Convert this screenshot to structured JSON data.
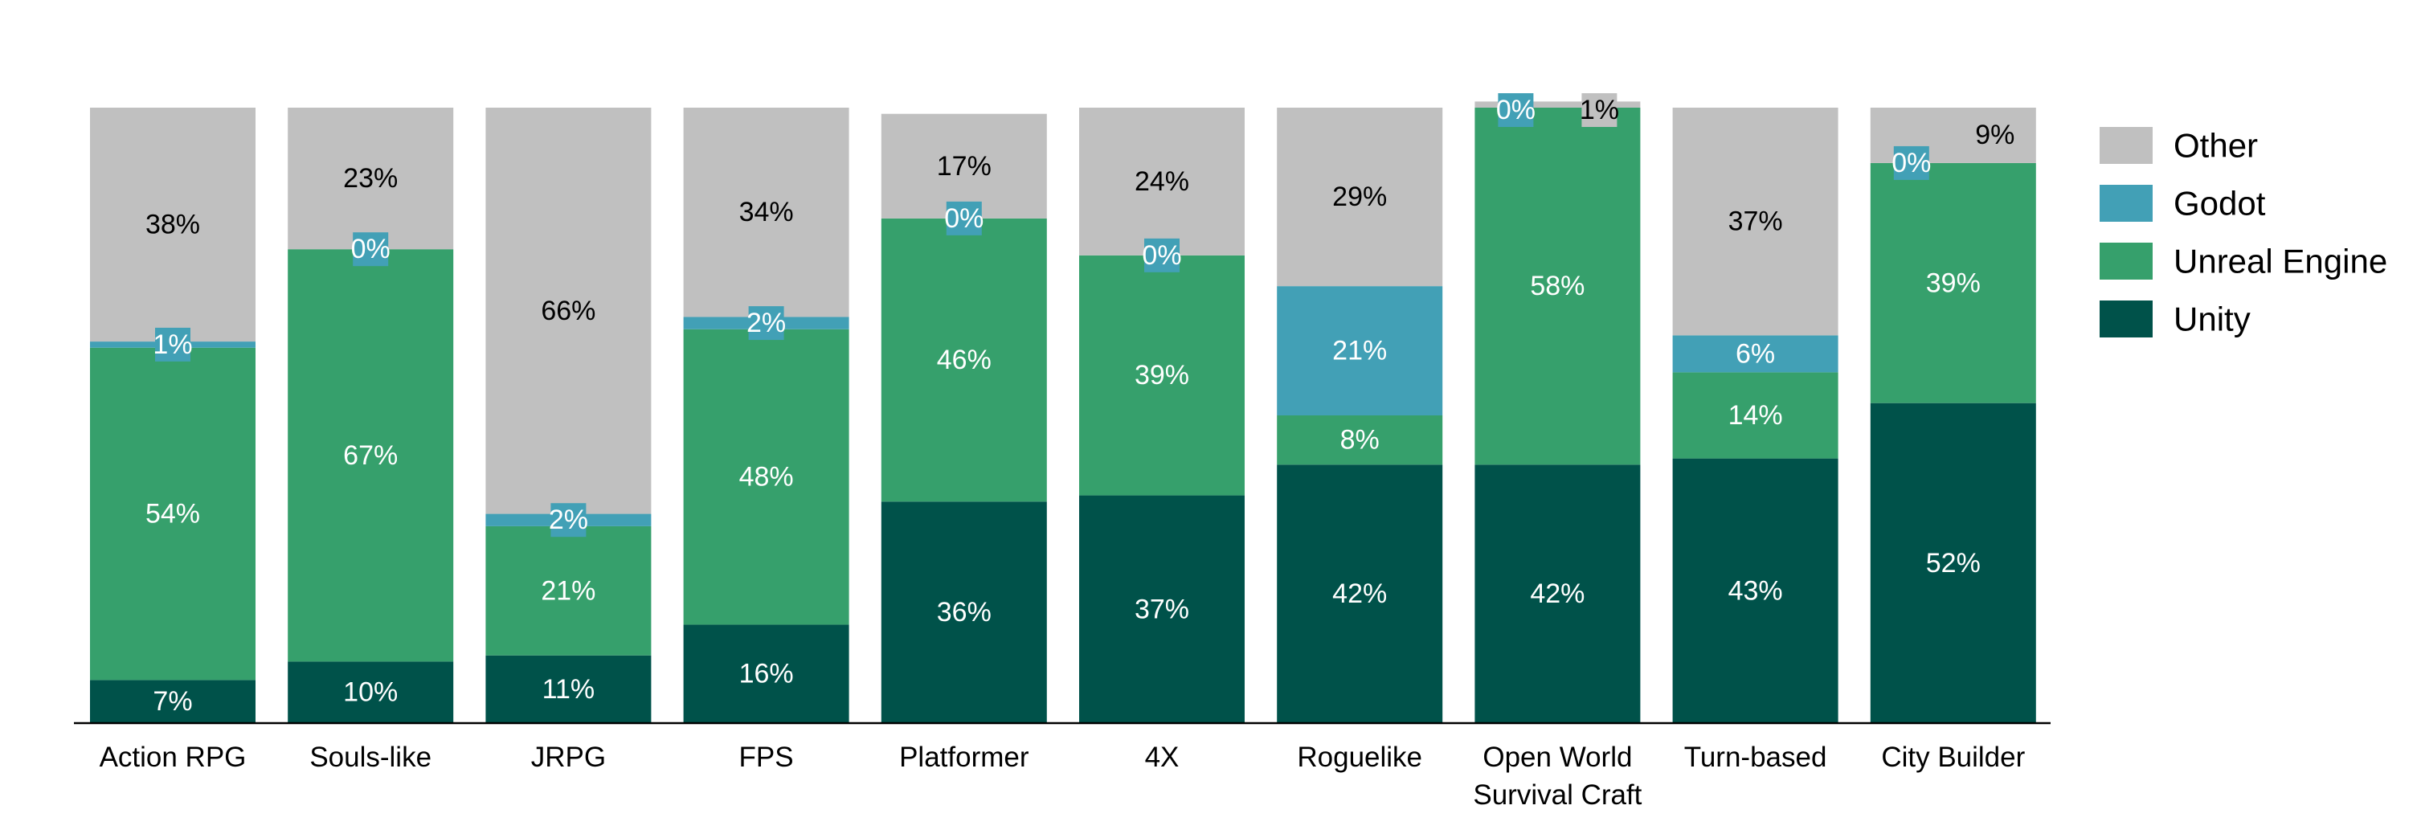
{
  "chart_data": {
    "type": "bar",
    "stacked": true,
    "normalized": true,
    "categories": [
      "Action RPG",
      "Souls-like",
      "JRPG",
      "FPS",
      "Platformer",
      "4X",
      "Roguelike",
      "Open World\nSurvival Craft",
      "Turn-based",
      "City Builder"
    ],
    "series": [
      {
        "name": "Unity",
        "color": "#00524a",
        "label_color": "#ffffff",
        "values": [
          7,
          10,
          11,
          16,
          36,
          37,
          42,
          42,
          43,
          52
        ]
      },
      {
        "name": "Unreal Engine",
        "color": "#36a06c",
        "label_color": "#ffffff",
        "values": [
          54,
          67,
          21,
          48,
          46,
          39,
          8,
          58,
          14,
          39
        ]
      },
      {
        "name": "Godot",
        "color": "#42a0b6",
        "label_color": "#ffffff",
        "values": [
          1,
          0,
          2,
          2,
          0,
          0,
          21,
          0,
          6,
          0
        ]
      },
      {
        "name": "Other",
        "color": "#c0c0c0",
        "label_color": "#000000",
        "values": [
          38,
          23,
          66,
          34,
          17,
          24,
          29,
          1,
          37,
          9
        ]
      }
    ],
    "data_labels": [
      [
        "7%",
        "10%",
        "11%",
        "16%",
        "36%",
        "37%",
        "42%",
        "42%",
        "43%",
        "52%"
      ],
      [
        "54%",
        "67%",
        "21%",
        "48%",
        "46%",
        "39%",
        "8%",
        "58%",
        "14%",
        "39%"
      ],
      [
        "1%",
        "0%",
        "2%",
        "2%",
        "0%",
        "0%",
        "21%",
        "0%",
        "6%",
        "0%"
      ],
      [
        "38%",
        "23%",
        "66%",
        "34%",
        "17%",
        "24%",
        "29%",
        "1%",
        "37%",
        "9%"
      ]
    ],
    "legend_order": [
      "Other",
      "Godot",
      "Unreal Engine",
      "Unity"
    ],
    "legend_position": "right",
    "ylim": [
      0,
      100
    ],
    "grid": false
  }
}
